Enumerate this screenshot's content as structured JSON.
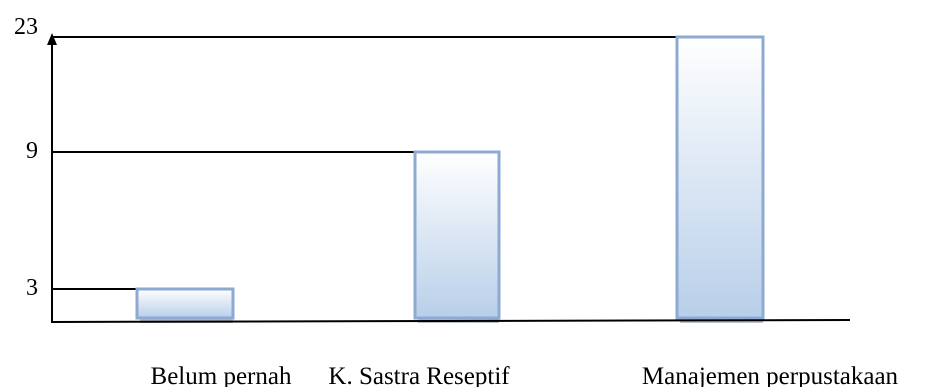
{
  "chart_data": {
    "type": "bar",
    "title": "",
    "xlabel": "",
    "ylabel": "",
    "categories": [
      "Belum pernah",
      "K. Sastra Reseptif",
      "Manajemen perpustakaan"
    ],
    "values": [
      3,
      9,
      23
    ],
    "y_tick_labels": [
      "3",
      "9",
      "23"
    ],
    "bar_color": "#b8cfe9",
    "bar_edge_color": "#8eaad2",
    "grid": false,
    "legend": "none"
  }
}
